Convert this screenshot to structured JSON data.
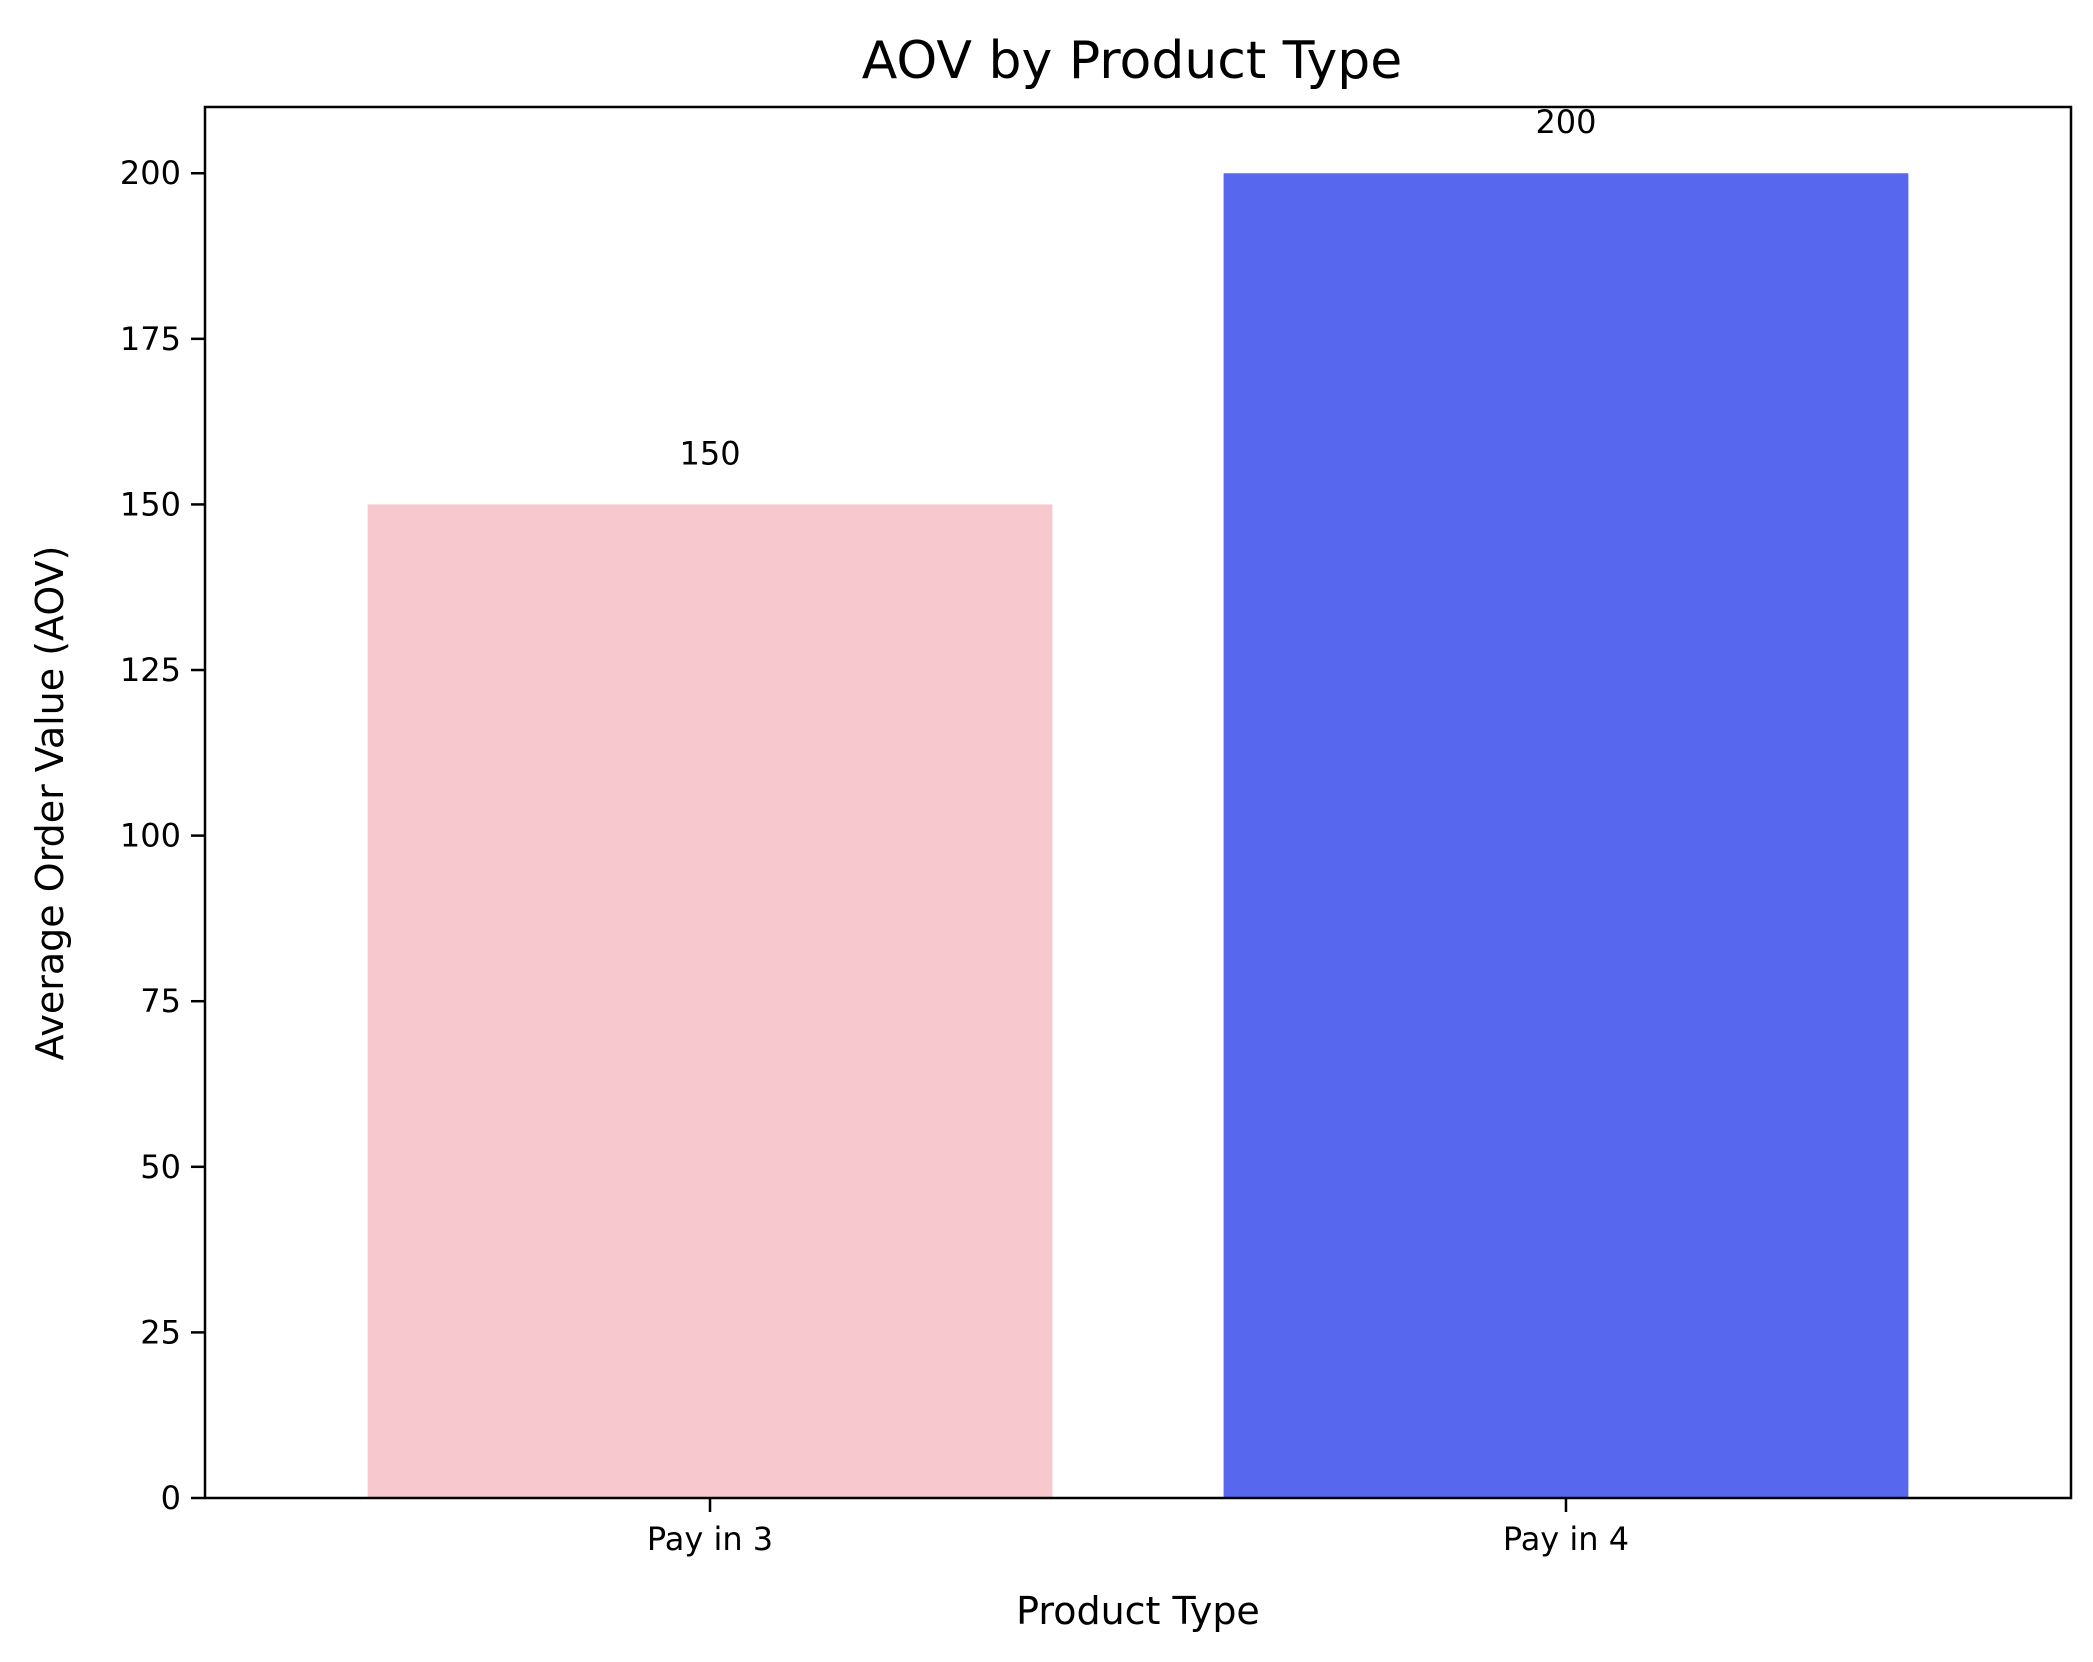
{
  "chart_data": {
    "type": "bar",
    "title": "AOV by Product Type",
    "xlabel": "Product Type",
    "ylabel": "Average Order Value (AOV)",
    "categories": [
      "Pay in 3",
      "Pay in 4"
    ],
    "values": [
      150,
      200
    ],
    "data_labels": [
      "150",
      "200"
    ],
    "bar_colors": [
      "#f7c8cd",
      "#5768ef"
    ],
    "ylim": [
      0,
      210
    ],
    "yticks": [
      0,
      25,
      50,
      75,
      100,
      125,
      150,
      175,
      200
    ],
    "ytick_labels": [
      "0",
      "25",
      "50",
      "75",
      "100",
      "125",
      "150",
      "175",
      "200"
    ],
    "grid": false,
    "legend": "none"
  }
}
